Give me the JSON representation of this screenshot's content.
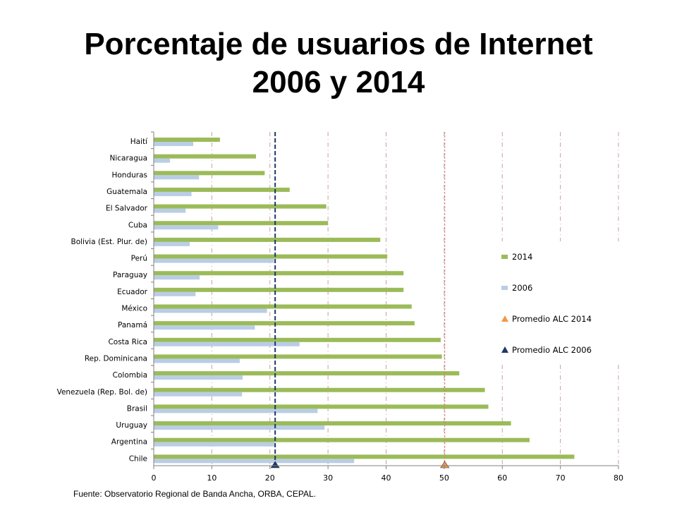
{
  "title": {
    "line1": "Porcentaje de usuarios de Internet",
    "line2": "2006 y 2014"
  },
  "source": "Fuente: Observatorio Regional de Banda Ancha, ORBA, CEPAL.",
  "colors": {
    "s2014": "#9bbb59",
    "s2006": "#b9cde5",
    "avg2014": "#f79646",
    "avg2006": "#1f3864",
    "grid": "#c8a0a0"
  },
  "chart_data": {
    "type": "bar",
    "orientation": "horizontal",
    "categories": [
      "Haití",
      "Nicaragua",
      "Honduras",
      "Guatemala",
      "El Salvador",
      "Cuba",
      "Bolivia (Est. Plur. de)",
      "Perú",
      "Paraguay",
      "Ecuador",
      "México",
      "Panamá",
      "Costa Rica",
      "Rep. Dominicana",
      "Colombia",
      "Venezuela (Rep. Bol. de)",
      "Brasil",
      "Uruguay",
      "Argentina",
      "Chile"
    ],
    "series": [
      {
        "name": "2014",
        "values": [
          11.4,
          17.6,
          19.1,
          23.4,
          29.7,
          30.0,
          39.0,
          40.2,
          43.0,
          43.0,
          44.4,
          44.9,
          49.4,
          49.6,
          52.6,
          57.0,
          57.6,
          61.5,
          64.7,
          72.4
        ]
      },
      {
        "name": "2006",
        "values": [
          6.8,
          2.8,
          7.8,
          6.5,
          5.5,
          11.1,
          6.2,
          20.7,
          7.9,
          7.2,
          19.5,
          17.4,
          25.1,
          14.8,
          15.3,
          15.2,
          28.2,
          29.4,
          20.8,
          34.5
        ]
      }
    ],
    "reference_lines": [
      {
        "name": "Promedio ALC 2014",
        "value": 50.1
      },
      {
        "name": "Promedio ALC 2006",
        "value": 20.9
      }
    ],
    "xlim": [
      0,
      80
    ],
    "xticks": [
      "0",
      "10",
      "20",
      "30",
      "40",
      "50",
      "60",
      "70",
      "80"
    ],
    "grid": true,
    "legend": "right",
    "legend_items": [
      "2014",
      "2006",
      "Promedio ALC 2014",
      "Promedio ALC 2006"
    ]
  }
}
